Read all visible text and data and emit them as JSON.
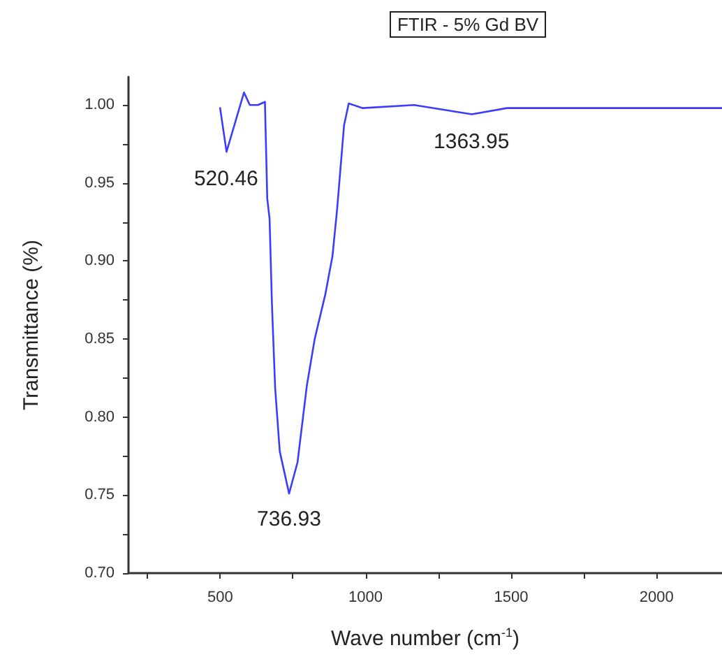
{
  "chart_data": {
    "type": "line",
    "title": "FTIR - 5% Gd BV",
    "xlabel": "Wave number (cm$^{-1}$)",
    "ylabel": "Transmittance (%)",
    "xlim": [
      185,
      2225
    ],
    "xticks": [
      {
        "value": 250,
        "label": null
      },
      500,
      {
        "value": 750,
        "label": null
      },
      1000,
      {
        "value": 1250,
        "label": null
      },
      1500,
      {
        "value": 1750,
        "label": null
      },
      2000
    ],
    "ylim": [
      0.7,
      1.018
    ],
    "yticks": [
      {
        "value": 0.7,
        "label": "0.70"
      },
      {
        "value": 0.725,
        "label": null
      },
      {
        "value": 0.75,
        "label": "0.75"
      },
      {
        "value": 0.775,
        "label": null
      },
      {
        "value": 0.8,
        "label": "0.80"
      },
      {
        "value": 0.825,
        "label": null
      },
      {
        "value": 0.85,
        "label": "0.85"
      },
      {
        "value": 0.875,
        "label": null
      },
      {
        "value": 0.9,
        "label": "0.90"
      },
      {
        "value": 0.925,
        "label": null
      },
      {
        "value": 0.95,
        "label": "0.95"
      },
      {
        "value": 0.975,
        "label": null
      },
      {
        "value": 1.0,
        "label": "1.00"
      }
    ],
    "grid": false,
    "marker": "none",
    "line_style": "solid",
    "series": [
      {
        "color": "#3c3cff",
        "x": [
          500,
          522,
          582,
          602,
          630,
          654,
          662,
          670,
          678,
          689,
          705,
          737,
          766,
          798,
          825,
          862,
          886,
          902,
          926,
          942,
          990,
          1167,
          1365,
          1486,
          1700,
          2000,
          2225
        ],
        "values": [
          0.998,
          0.97,
          1.008,
          1.0,
          1.0,
          1.002,
          0.94,
          0.927,
          0.873,
          0.819,
          0.778,
          0.751,
          0.771,
          0.82,
          0.85,
          0.879,
          0.903,
          0.933,
          0.987,
          1.001,
          0.998,
          1.0,
          0.994,
          0.998,
          0.998,
          0.998,
          0.998
        ]
      }
    ],
    "annotations": [
      {
        "text": "520.46",
        "x": 520.46,
        "y": 0.97
      },
      {
        "text": "736.93",
        "x": 736.93,
        "y": 0.752
      },
      {
        "text": "1363.95",
        "x": 1363.95,
        "y": 0.994
      }
    ]
  }
}
